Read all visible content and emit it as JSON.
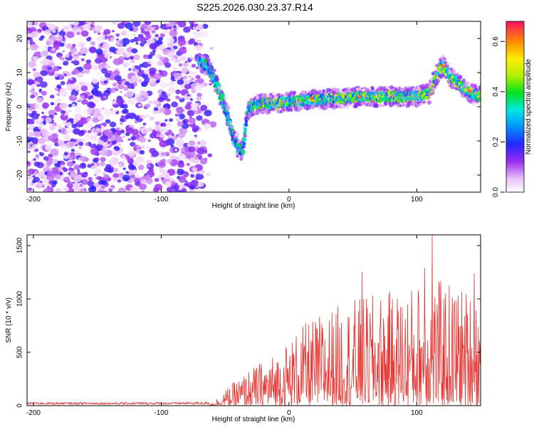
{
  "title": "S225.2026.030.23.37.R14",
  "chart_data": [
    {
      "type": "heatmap",
      "xlabel": "Height of straight line (km)",
      "ylabel": "Frequency (Hz)",
      "xlim": [
        -205,
        150
      ],
      "ylim": [
        -25,
        25
      ],
      "xticks": [
        -200,
        -100,
        0,
        100
      ],
      "yticks": [
        -20,
        -10,
        0,
        10,
        20
      ],
      "colorbar": {
        "label": "Normalized spectral amplitude",
        "range": [
          0,
          0.68
        ],
        "ticks": [
          0.0,
          0.2,
          0.4,
          0.6
        ],
        "tick_labels": [
          "0.0",
          "0.2",
          "0.4",
          "0.6"
        ]
      },
      "ridge": [
        {
          "x": -68,
          "y": 13
        },
        {
          "x": -62,
          "y": 11
        },
        {
          "x": -56,
          "y": 6
        },
        {
          "x": -52,
          "y": 2
        },
        {
          "x": -47,
          "y": -4
        },
        {
          "x": -44,
          "y": -8
        },
        {
          "x": -40,
          "y": -12
        },
        {
          "x": -36,
          "y": -13
        },
        {
          "x": -33,
          "y": -3
        },
        {
          "x": -30,
          "y": 0
        },
        {
          "x": -20,
          "y": 1
        },
        {
          "x": -10,
          "y": 1
        },
        {
          "x": 0,
          "y": 1.5
        },
        {
          "x": 20,
          "y": 2
        },
        {
          "x": 40,
          "y": 2.5
        },
        {
          "x": 60,
          "y": 3
        },
        {
          "x": 80,
          "y": 3
        },
        {
          "x": 100,
          "y": 3
        },
        {
          "x": 110,
          "y": 4
        },
        {
          "x": 115,
          "y": 9
        },
        {
          "x": 120,
          "y": 12
        },
        {
          "x": 128,
          "y": 8
        },
        {
          "x": 135,
          "y": 6
        },
        {
          "x": 142,
          "y": 4
        },
        {
          "x": 150,
          "y": 3
        }
      ],
      "hot_spots": [
        {
          "x": 18,
          "y": 2.5,
          "v": 0.62
        },
        {
          "x": 55,
          "y": 3,
          "v": 0.62
        },
        {
          "x": 120,
          "y": 12,
          "v": 0.62
        },
        {
          "x": 142,
          "y": 4.5,
          "v": 0.62
        }
      ]
    },
    {
      "type": "line",
      "xlabel": "Height of straight line (km)",
      "ylabel": "SNR (10 * v/v)",
      "xlim": [
        -205,
        150
      ],
      "ylim": [
        0,
        1600
      ],
      "xticks": [
        -200,
        -100,
        0,
        100
      ],
      "yticks": [
        0,
        500,
        1000,
        1500
      ],
      "series": [
        {
          "color": "#e8332f",
          "envelope": [
            {
              "x": -205,
              "y": 25
            },
            {
              "x": -100,
              "y": 25
            },
            {
              "x": -60,
              "y": 30
            },
            {
              "x": -45,
              "y": 200
            },
            {
              "x": -30,
              "y": 350
            },
            {
              "x": -10,
              "y": 500
            },
            {
              "x": 10,
              "y": 750
            },
            {
              "x": 30,
              "y": 900
            },
            {
              "x": 50,
              "y": 1000
            },
            {
              "x": 70,
              "y": 1050
            },
            {
              "x": 90,
              "y": 1100
            },
            {
              "x": 110,
              "y": 1200
            },
            {
              "x": 130,
              "y": 1150
            },
            {
              "x": 150,
              "y": 1050
            }
          ],
          "peaks": [
            {
              "x": 112,
              "y": 1600
            },
            {
              "x": 106,
              "y": 1290
            },
            {
              "x": 57,
              "y": 1250
            },
            {
              "x": 145,
              "y": 1240
            }
          ]
        }
      ]
    }
  ]
}
